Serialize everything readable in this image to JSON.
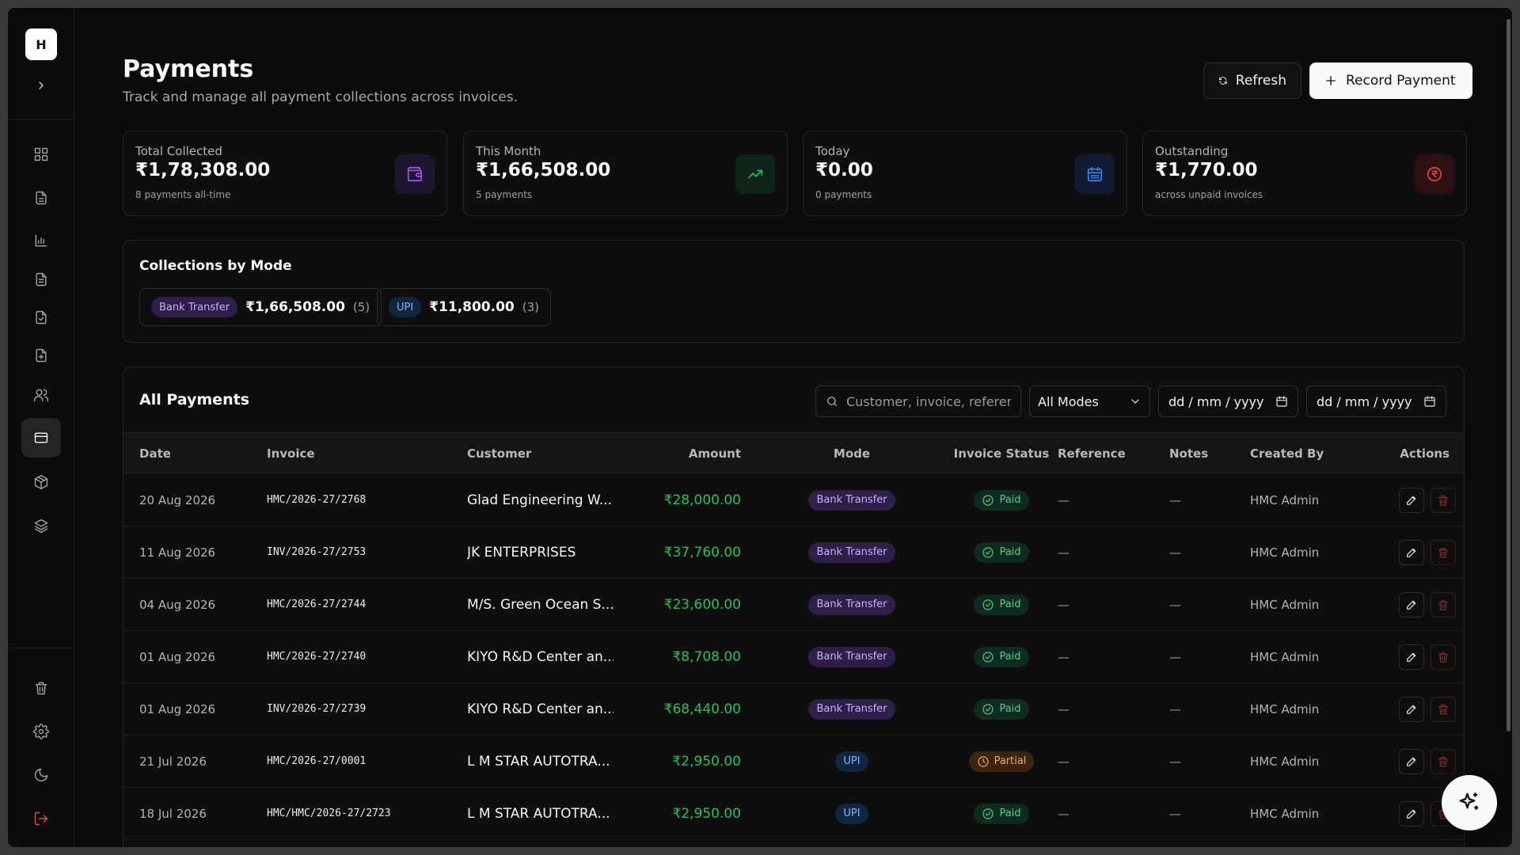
{
  "sidebar": {
    "logo": "H",
    "items": [
      {
        "name": "dashboard",
        "icon": "grid-icon"
      },
      {
        "name": "invoices",
        "icon": "document-icon"
      },
      {
        "name": "reports",
        "icon": "bar-chart-icon"
      },
      {
        "name": "quotations",
        "icon": "file-text-icon"
      },
      {
        "name": "approvals",
        "icon": "file-check-icon"
      },
      {
        "name": "create-invoice",
        "icon": "file-plus-icon"
      },
      {
        "name": "customers",
        "icon": "users-icon"
      },
      {
        "name": "payments",
        "icon": "credit-card-icon",
        "active": true
      },
      {
        "name": "products",
        "icon": "package-icon"
      },
      {
        "name": "inventory",
        "icon": "layers-icon"
      }
    ],
    "bottom": [
      {
        "name": "trash",
        "icon": "trash-icon"
      },
      {
        "name": "settings",
        "icon": "gear-icon"
      },
      {
        "name": "theme",
        "icon": "moon-icon"
      },
      {
        "name": "logout",
        "icon": "logout-icon"
      }
    ]
  },
  "header": {
    "title": "Payments",
    "subtitle": "Track and manage all payment collections across invoices.",
    "refresh_label": "Refresh",
    "record_label": "Record Payment"
  },
  "stats": [
    {
      "label": "Total Collected",
      "value": "₹1,78,308.00",
      "note": "8 payments all-time",
      "icon": "wallet-icon",
      "color": "#a855f7",
      "bg": "#1e1530"
    },
    {
      "label": "This Month",
      "value": "₹1,66,508.00",
      "note": "5 payments",
      "icon": "trending-up-icon",
      "color": "#22c35e",
      "bg": "#0f2418"
    },
    {
      "label": "Today",
      "value": "₹0.00",
      "note": "0 payments",
      "icon": "calendar-icon",
      "color": "#3b82f6",
      "bg": "#111c33"
    },
    {
      "label": "Outstanding",
      "value": "₹1,770.00",
      "note": "across unpaid invoices",
      "icon": "rupee-circle-icon",
      "color": "#ef4444",
      "bg": "#2b1111"
    }
  ],
  "collections": {
    "title": "Collections by Mode",
    "modes": [
      {
        "mode": "Bank Transfer",
        "amount": "₹1,66,508.00",
        "count": "(5)"
      },
      {
        "mode": "UPI",
        "amount": "₹11,800.00",
        "count": "(3)"
      }
    ]
  },
  "payments": {
    "title": "All Payments",
    "search_placeholder": "Customer, invoice, reference...",
    "mode_filter": "All Modes",
    "date_from": "dd / mm / yyyy",
    "date_to": "dd / mm / yyyy",
    "columns": [
      "Date",
      "Invoice",
      "Customer",
      "Amount",
      "Mode",
      "Invoice Status",
      "Reference",
      "Notes",
      "Created By",
      "Actions"
    ],
    "rows": [
      {
        "date": "20 Aug 2026",
        "invoice": "HMC/2026-27/2768",
        "customer": "Glad Engineering W...",
        "amount": "₹28,000.00",
        "mode": "Bank Transfer",
        "status": "Paid",
        "reference": "—",
        "notes": "—",
        "created_by": "HMC Admin"
      },
      {
        "date": "11 Aug 2026",
        "invoice": "INV/2026-27/2753",
        "customer": "JK ENTERPRISES",
        "amount": "₹37,760.00",
        "mode": "Bank Transfer",
        "status": "Paid",
        "reference": "—",
        "notes": "—",
        "created_by": "HMC Admin"
      },
      {
        "date": "04 Aug 2026",
        "invoice": "HMC/2026-27/2744",
        "customer": "M/S. Green Ocean S...",
        "amount": "₹23,600.00",
        "mode": "Bank Transfer",
        "status": "Paid",
        "reference": "—",
        "notes": "—",
        "created_by": "HMC Admin"
      },
      {
        "date": "01 Aug 2026",
        "invoice": "HMC/2026-27/2740",
        "customer": "KIYO R&D Center an...",
        "amount": "₹8,708.00",
        "mode": "Bank Transfer",
        "status": "Paid",
        "reference": "—",
        "notes": "—",
        "created_by": "HMC Admin"
      },
      {
        "date": "01 Aug 2026",
        "invoice": "INV/2026-27/2739",
        "customer": "KIYO R&D Center an...",
        "amount": "₹68,440.00",
        "mode": "Bank Transfer",
        "status": "Paid",
        "reference": "—",
        "notes": "—",
        "created_by": "HMC Admin"
      },
      {
        "date": "21 Jul 2026",
        "invoice": "HMC/2026-27/0001",
        "customer": "L M STAR AUTOTRA...",
        "amount": "₹2,950.00",
        "mode": "UPI",
        "status": "Partial",
        "reference": "—",
        "notes": "—",
        "created_by": "HMC Admin"
      },
      {
        "date": "18 Jul 2026",
        "invoice": "HMC/HMC/2026-27/2723",
        "customer": "L M STAR AUTOTRA...",
        "amount": "₹2,950.00",
        "mode": "UPI",
        "status": "Paid",
        "reference": "—",
        "notes": "—",
        "created_by": "HMC Admin"
      }
    ]
  },
  "fab": {
    "icon": "sparkles-icon"
  }
}
